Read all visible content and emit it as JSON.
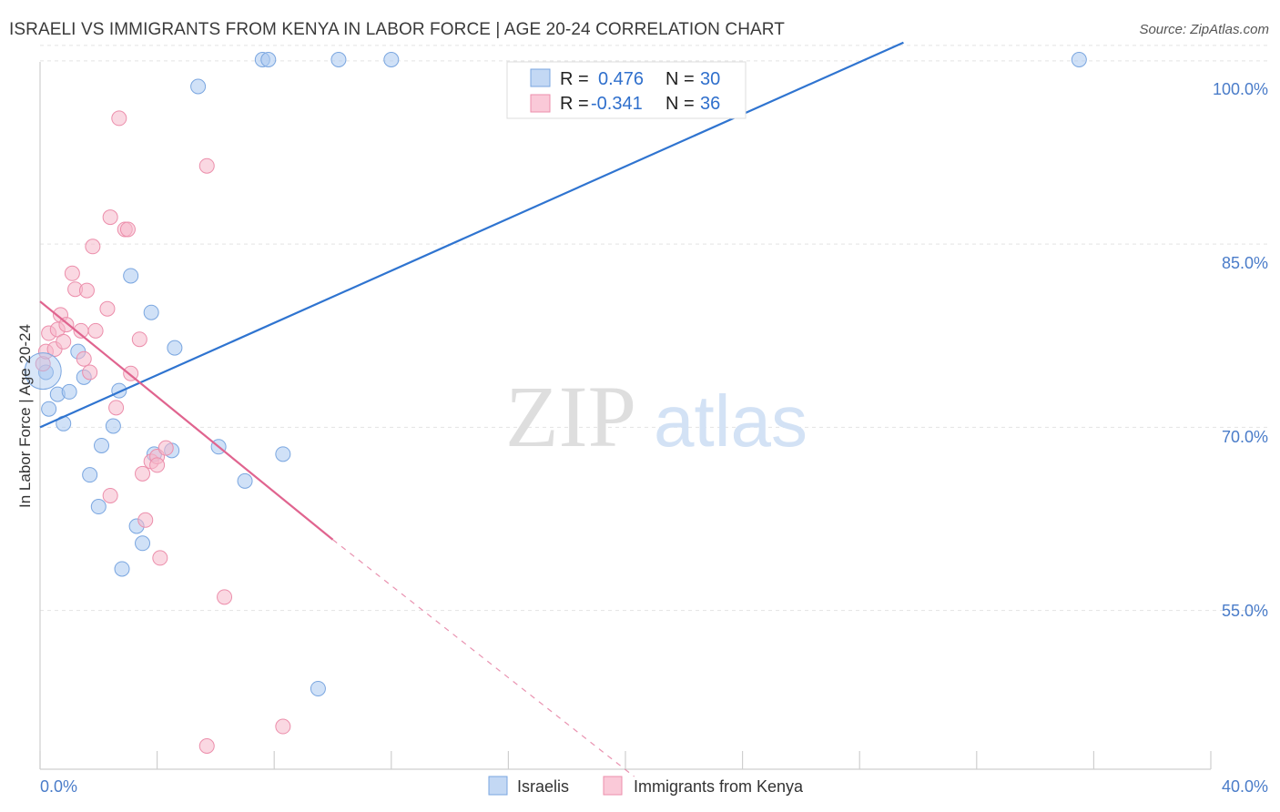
{
  "title": "ISRAELI VS IMMIGRANTS FROM KENYA IN LABOR FORCE | AGE 20-24 CORRELATION CHART",
  "source": "Source: ZipAtlas.com",
  "watermark": {
    "zip": "ZIP",
    "atlas": "atlas"
  },
  "legend": {
    "rows": [
      {
        "r_label": "R =",
        "r_value": "0.476",
        "n_label": "N =",
        "n_value": "30",
        "color": "#a9c8f0"
      },
      {
        "r_label": "R =",
        "r_value": "-0.341",
        "n_label": "N =",
        "n_value": "36",
        "color": "#f6b8cb"
      }
    ]
  },
  "bottom_legend": [
    "Israelis",
    "Immigrants from Kenya"
  ],
  "chart_data": {
    "type": "scatter",
    "xlabel": "",
    "ylabel": "In Labor Force | Age 20-24",
    "xlim": [
      0,
      40
    ],
    "ylim": [
      42,
      102
    ],
    "x_tick_labels": [
      "0.0%",
      "40.0%"
    ],
    "y_tick_labels": [
      "100.0%",
      "85.0%",
      "70.0%",
      "55.0%"
    ],
    "y_ticks": [
      100,
      85,
      70,
      55
    ],
    "grid": true,
    "legend_position": "top-center",
    "series": [
      {
        "name": "Israelis",
        "color": "#a9c8f0",
        "stroke": "#7aa6e0",
        "line_color": "#2f74d0",
        "trend": {
          "x": [
            0,
            29.5
          ],
          "y": [
            70.0,
            101.5
          ]
        },
        "points": [
          [
            0.2,
            74.5
          ],
          [
            0.3,
            71.5
          ],
          [
            0.6,
            72.7
          ],
          [
            0.8,
            70.3
          ],
          [
            1.0,
            72.9
          ],
          [
            1.3,
            76.2
          ],
          [
            1.5,
            74.1
          ],
          [
            1.7,
            66.1
          ],
          [
            2.0,
            63.5
          ],
          [
            2.1,
            68.5
          ],
          [
            2.5,
            70.1
          ],
          [
            2.7,
            73.0
          ],
          [
            2.8,
            58.4
          ],
          [
            3.1,
            82.4
          ],
          [
            3.3,
            61.9
          ],
          [
            3.5,
            60.5
          ],
          [
            3.8,
            79.4
          ],
          [
            3.9,
            67.8
          ],
          [
            4.5,
            68.1
          ],
          [
            4.6,
            76.5
          ],
          [
            5.4,
            97.9
          ],
          [
            6.1,
            68.4
          ],
          [
            7.0,
            65.6
          ],
          [
            7.6,
            100.1
          ],
          [
            7.8,
            100.1
          ],
          [
            8.3,
            67.8
          ],
          [
            9.5,
            48.6
          ],
          [
            10.2,
            100.1
          ],
          [
            12.0,
            100.1
          ],
          [
            35.5,
            100.1
          ]
        ]
      },
      {
        "name": "Immigrants from Kenya",
        "color": "#f6b8cb",
        "stroke": "#ec8eab",
        "line_color": "#e0648f",
        "trend": {
          "x": [
            0,
            10.0
          ],
          "y": [
            80.3,
            60.8
          ]
        },
        "trend_dashed": {
          "x": [
            10.0,
            20.3
          ],
          "y": [
            60.8,
            41.4
          ]
        },
        "points": [
          [
            0.1,
            75.2
          ],
          [
            0.2,
            76.2
          ],
          [
            0.3,
            77.7
          ],
          [
            0.5,
            76.4
          ],
          [
            0.6,
            78.0
          ],
          [
            0.7,
            79.2
          ],
          [
            0.8,
            77.0
          ],
          [
            0.9,
            78.4
          ],
          [
            1.1,
            82.6
          ],
          [
            1.2,
            81.3
          ],
          [
            1.4,
            77.9
          ],
          [
            1.5,
            75.6
          ],
          [
            1.6,
            81.2
          ],
          [
            1.7,
            74.5
          ],
          [
            1.8,
            84.8
          ],
          [
            1.9,
            77.9
          ],
          [
            2.3,
            79.7
          ],
          [
            2.4,
            64.4
          ],
          [
            2.4,
            87.2
          ],
          [
            2.6,
            71.6
          ],
          [
            2.7,
            95.3
          ],
          [
            2.9,
            86.2
          ],
          [
            3.0,
            86.2
          ],
          [
            3.1,
            74.4
          ],
          [
            3.4,
            77.2
          ],
          [
            3.5,
            66.2
          ],
          [
            3.6,
            62.4
          ],
          [
            3.8,
            67.2
          ],
          [
            4.0,
            67.6
          ],
          [
            4.0,
            66.9
          ],
          [
            4.1,
            59.3
          ],
          [
            4.3,
            68.3
          ],
          [
            5.7,
            91.4
          ],
          [
            5.7,
            43.9
          ],
          [
            6.3,
            56.1
          ],
          [
            8.3,
            45.5
          ]
        ]
      }
    ]
  }
}
